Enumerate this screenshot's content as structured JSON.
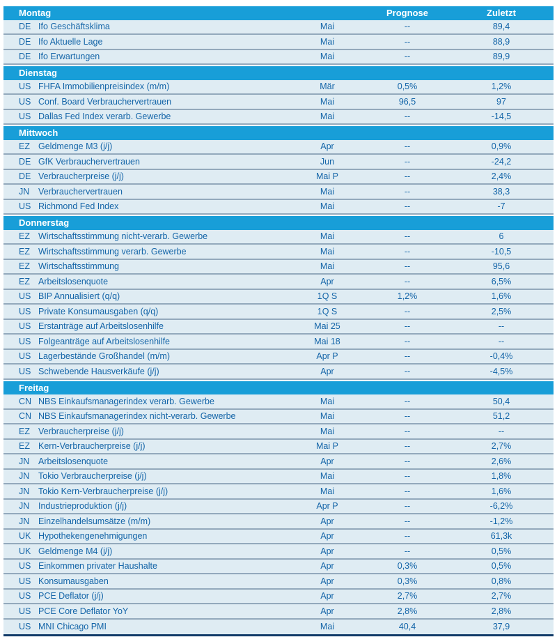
{
  "table": {
    "column_headers": {
      "forecast": "Prognose",
      "last": "Zuletzt"
    },
    "colors": {
      "day_band_background": "#189ed8",
      "day_band_text": "#ffffff",
      "row_background": "#dfecf3",
      "row_text": "#1465a8",
      "row_separator": "#93a9bc",
      "table_bottom_border": "#113a68",
      "page_background": "#ffffff"
    },
    "days": [
      {
        "label": "Montag",
        "rows": [
          {
            "country": "DE",
            "indicator": "Ifo Geschäftsklima",
            "period": "Mai",
            "forecast": "--",
            "last": "89,4"
          },
          {
            "country": "DE",
            "indicator": "Ifo Aktuelle Lage",
            "period": "Mai",
            "forecast": "--",
            "last": "88,9"
          },
          {
            "country": "DE",
            "indicator": "Ifo Erwartungen",
            "period": "Mai",
            "forecast": "--",
            "last": "89,9"
          }
        ]
      },
      {
        "label": "Dienstag",
        "rows": [
          {
            "country": "US",
            "indicator": "FHFA Immobilienpreisindex (m/m)",
            "period": "Mär",
            "forecast": "0,5%",
            "last": "1,2%"
          },
          {
            "country": "US",
            "indicator": "Conf. Board Verbrauchervertrauen",
            "period": "Mai",
            "forecast": "96,5",
            "last": "97"
          },
          {
            "country": "US",
            "indicator": "Dallas Fed Index verarb. Gewerbe",
            "period": "Mai",
            "forecast": "--",
            "last": "-14,5"
          }
        ]
      },
      {
        "label": "Mittwoch",
        "rows": [
          {
            "country": "EZ",
            "indicator": "Geldmenge M3 (j/j)",
            "period": "Apr",
            "forecast": "--",
            "last": "0,9%"
          },
          {
            "country": "DE",
            "indicator": "GfK Verbrauchervertrauen",
            "period": "Jun",
            "forecast": "--",
            "last": "-24,2"
          },
          {
            "country": "DE",
            "indicator": "Verbraucherpreise (j/j)",
            "period": "Mai P",
            "forecast": "--",
            "last": "2,4%"
          },
          {
            "country": "JN",
            "indicator": "Verbrauchervertrauen",
            "period": "Mai",
            "forecast": "--",
            "last": "38,3"
          },
          {
            "country": "US",
            "indicator": "Richmond Fed Index",
            "period": "Mai",
            "forecast": "--",
            "last": "-7"
          }
        ]
      },
      {
        "label": "Donnerstag",
        "rows": [
          {
            "country": "EZ",
            "indicator": "Wirtschaftsstimmung nicht-verarb. Gewerbe",
            "period": "Mai",
            "forecast": "--",
            "last": "6"
          },
          {
            "country": "EZ",
            "indicator": "Wirtschaftsstimmung verarb. Gewerbe",
            "period": "Mai",
            "forecast": "--",
            "last": "-10,5"
          },
          {
            "country": "EZ",
            "indicator": "Wirtschaftsstimmung",
            "period": "Mai",
            "forecast": "--",
            "last": "95,6"
          },
          {
            "country": "EZ",
            "indicator": "Arbeitslosenquote",
            "period": "Apr",
            "forecast": "--",
            "last": "6,5%"
          },
          {
            "country": "US",
            "indicator": "BIP Annualisiert (q/q)",
            "period": "1Q S",
            "forecast": "1,2%",
            "last": "1,6%"
          },
          {
            "country": "US",
            "indicator": "Private Konsumausgaben (q/q)",
            "period": "1Q S",
            "forecast": "--",
            "last": "2,5%"
          },
          {
            "country": "US",
            "indicator": "Erstanträge auf Arbeitslosenhilfe",
            "period": "Mai 25",
            "forecast": "--",
            "last": "--"
          },
          {
            "country": "US",
            "indicator": "Folgeanträge auf Arbeitslosenhilfe",
            "period": "Mai 18",
            "forecast": "--",
            "last": "--"
          },
          {
            "country": "US",
            "indicator": "Lagerbestände Großhandel (m/m)",
            "period": "Apr P",
            "forecast": "--",
            "last": "-0,4%"
          },
          {
            "country": "US",
            "indicator": "Schwebende Hausverkäufe (j/j)",
            "period": "Apr",
            "forecast": "--",
            "last": "-4,5%"
          }
        ]
      },
      {
        "label": "Freitag",
        "rows": [
          {
            "country": "CN",
            "indicator": "NBS Einkaufsmanagerindex verarb. Gewerbe",
            "period": "Mai",
            "forecast": "--",
            "last": "50,4"
          },
          {
            "country": "CN",
            "indicator": "NBS Einkaufsmanagerindex nicht-verarb. Gewerbe",
            "period": "Mai",
            "forecast": "--",
            "last": "51,2"
          },
          {
            "country": "EZ",
            "indicator": "Verbraucherpreise (j/j)",
            "period": "Mai",
            "forecast": "--",
            "last": "--"
          },
          {
            "country": "EZ",
            "indicator": "Kern-Verbraucherpreise (j/j)",
            "period": "Mai P",
            "forecast": "--",
            "last": "2,7%"
          },
          {
            "country": "JN",
            "indicator": "Arbeitslosenquote",
            "period": "Apr",
            "forecast": "--",
            "last": "2,6%"
          },
          {
            "country": "JN",
            "indicator": "Tokio Verbraucherpreise (j/j)",
            "period": "Mai",
            "forecast": "--",
            "last": "1,8%"
          },
          {
            "country": "JN",
            "indicator": "Tokio Kern-Verbraucherpreise (j/j)",
            "period": "Mai",
            "forecast": "--",
            "last": "1,6%"
          },
          {
            "country": "JN",
            "indicator": "Industrieproduktion (j/j)",
            "period": "Apr P",
            "forecast": "--",
            "last": "-6,2%"
          },
          {
            "country": "JN",
            "indicator": "Einzelhandelsumsätze (m/m)",
            "period": "Apr",
            "forecast": "--",
            "last": "-1,2%"
          },
          {
            "country": "UK",
            "indicator": "Hypothekengenehmigungen",
            "period": "Apr",
            "forecast": "--",
            "last": "61,3k"
          },
          {
            "country": "UK",
            "indicator": "Geldmenge M4 (j/j)",
            "period": "Apr",
            "forecast": "--",
            "last": "0,5%"
          },
          {
            "country": "US",
            "indicator": "Einkommen privater Haushalte",
            "period": "Apr",
            "forecast": "0,3%",
            "last": "0,5%"
          },
          {
            "country": "US",
            "indicator": "Konsumausgaben",
            "period": "Apr",
            "forecast": "0,3%",
            "last": "0,8%"
          },
          {
            "country": "US",
            "indicator": "PCE Deflator (j/j)",
            "period": "Apr",
            "forecast": "2,7%",
            "last": "2,7%"
          },
          {
            "country": "US",
            "indicator": "PCE Core Deflator YoY",
            "period": "Apr",
            "forecast": "2,8%",
            "last": "2,8%"
          },
          {
            "country": "US",
            "indicator": "MNI Chicago PMI",
            "period": "Mai",
            "forecast": "40,4",
            "last": "37,9"
          }
        ]
      }
    ]
  }
}
